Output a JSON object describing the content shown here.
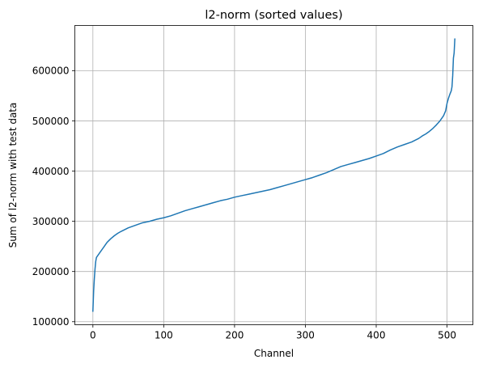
{
  "chart_data": {
    "type": "line",
    "title": "l2-norm (sorted values)",
    "xlabel": "Channel",
    "ylabel": "Sum of l2-norm with test data",
    "xlim": [
      -25.5,
      536.5
    ],
    "ylim": [
      94000,
      690000
    ],
    "xticks": [
      0,
      100,
      200,
      300,
      400,
      500
    ],
    "yticks": [
      100000,
      200000,
      300000,
      400000,
      500000,
      600000
    ],
    "grid": true,
    "series": [
      {
        "name": "",
        "color": "#1f77b4",
        "x": [
          0,
          1,
          2,
          3,
          4,
          5,
          6,
          7,
          10,
          15,
          20,
          25,
          30,
          35,
          40,
          50,
          60,
          70,
          80,
          90,
          100,
          110,
          120,
          130,
          140,
          150,
          160,
          170,
          180,
          190,
          200,
          210,
          220,
          230,
          240,
          250,
          260,
          270,
          280,
          290,
          300,
          310,
          320,
          330,
          340,
          350,
          360,
          370,
          380,
          390,
          400,
          410,
          420,
          430,
          440,
          450,
          460,
          465,
          470,
          475,
          480,
          485,
          490,
          495,
          498,
          500,
          502,
          504,
          506,
          507,
          508,
          509,
          510,
          511
        ],
        "values": [
          121000,
          160000,
          185000,
          205000,
          220000,
          228000,
          230000,
          232000,
          238000,
          248000,
          258000,
          265000,
          271000,
          276000,
          280000,
          287000,
          292000,
          297000,
          300000,
          304000,
          307000,
          311000,
          316000,
          321000,
          325000,
          329000,
          333000,
          337000,
          341000,
          344000,
          348000,
          351000,
          354000,
          357000,
          360000,
          363000,
          367000,
          371000,
          375000,
          379000,
          383000,
          387000,
          392000,
          397000,
          403000,
          409000,
          413000,
          417000,
          421000,
          425000,
          430000,
          435000,
          442000,
          448000,
          453000,
          458000,
          465000,
          470000,
          474000,
          479000,
          485000,
          492000,
          500000,
          510000,
          520000,
          535000,
          545000,
          553000,
          560000,
          568000,
          590000,
          625000,
          635000,
          663000
        ]
      }
    ]
  }
}
